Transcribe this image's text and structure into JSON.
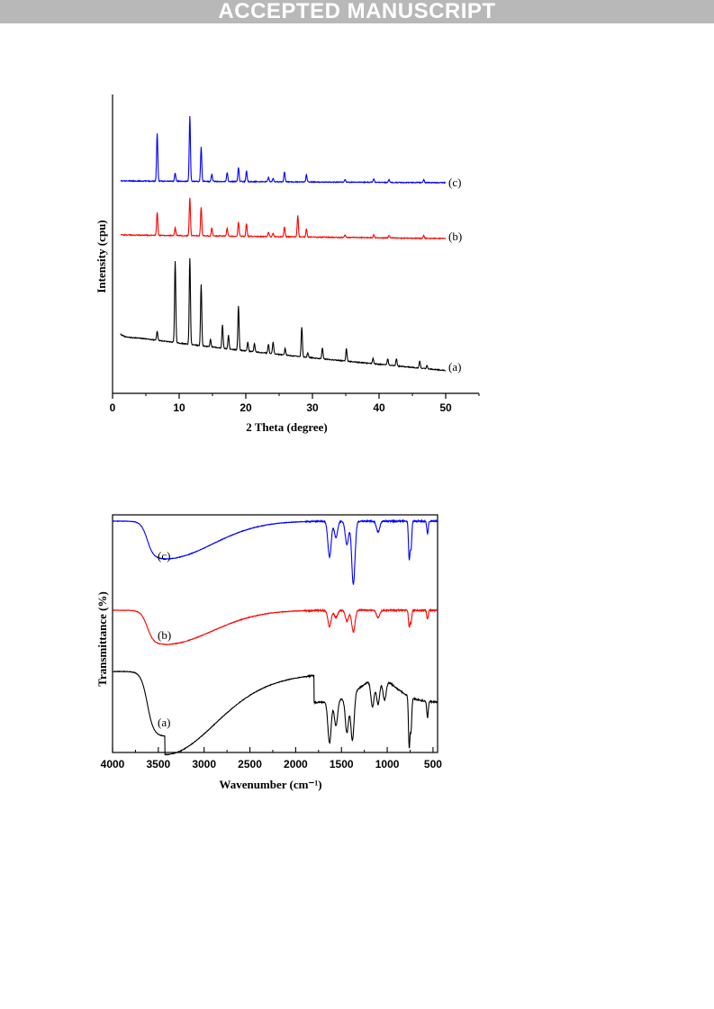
{
  "banner": {
    "text": "ACCEPTED MANUSCRIPT",
    "color": "#b8b8b8"
  },
  "chart_data": [
    {
      "type": "line",
      "title": "",
      "xlabel": "2 Theta (degree)",
      "ylabel": "Intensity (cpu)",
      "xlim": [
        0,
        55
      ],
      "xticks": [
        "0",
        "10",
        "20",
        "30",
        "40",
        "50"
      ],
      "y_ticks_shown": false,
      "grid": false,
      "series": [
        {
          "name": "(c)",
          "color": "#0000ff",
          "peaks_2theta": [
            6.7,
            9.4,
            11.6,
            13.3,
            14.9,
            17.2,
            18.9,
            20.1,
            23.4,
            24.1,
            25.8,
            29.1,
            34.9,
            39.2,
            41.5,
            46.7
          ]
        },
        {
          "name": "(b)",
          "color": "#ff0000",
          "peaks_2theta": [
            6.7,
            9.4,
            11.6,
            13.3,
            14.9,
            17.2,
            18.9,
            20.1,
            23.4,
            24.1,
            25.8,
            27.8,
            29.1,
            34.9,
            39.2,
            41.5,
            46.7
          ]
        },
        {
          "name": "(a)",
          "color": "#000000",
          "peaks_2theta": [
            6.7,
            9.4,
            11.6,
            13.3,
            14.7,
            16.5,
            17.4,
            18.9,
            20.3,
            21.3,
            23.4,
            24.1,
            25.9,
            28.4,
            29.3,
            31.5,
            35.1,
            39.1,
            41.3,
            42.6,
            46.1,
            47.2
          ]
        }
      ]
    },
    {
      "type": "line",
      "title": "",
      "xlabel": "Wavenumber (cm⁻¹)",
      "ylabel": "Transmittance (%)",
      "xlim": [
        4000,
        450
      ],
      "xticks": [
        "4000",
        "3500",
        "3000",
        "2500",
        "2000",
        "1500",
        "1000",
        "500"
      ],
      "y_ticks_shown": false,
      "grid": false,
      "series": [
        {
          "name": "(c)",
          "color": "#0000ff",
          "bands_cm-1": [
            3420,
            1630,
            1560,
            1440,
            1370,
            1100,
            760,
            740,
            560
          ]
        },
        {
          "name": "(b)",
          "color": "#ff0000",
          "bands_cm-1": [
            3420,
            1630,
            1560,
            1440,
            1370,
            1100,
            760,
            740,
            560
          ]
        },
        {
          "name": "(a)",
          "color": "#000000",
          "bands_cm-1": [
            3440,
            1630,
            1560,
            1440,
            1380,
            1160,
            1100,
            1030,
            760,
            740,
            560
          ]
        }
      ]
    }
  ]
}
